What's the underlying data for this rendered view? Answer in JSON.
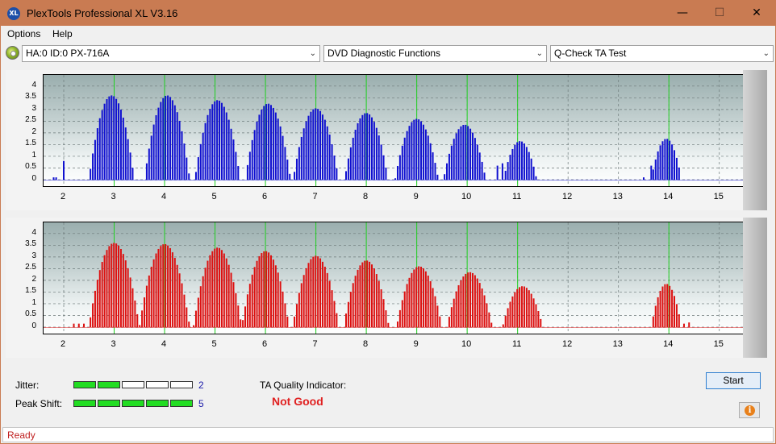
{
  "window": {
    "title": "PlexTools Professional XL V3.16",
    "icon_text": "XL",
    "icon": "app-logo-icon",
    "minimize_icon": "minimize-icon",
    "maximize_icon": "maximize-icon",
    "close_icon": "close-icon"
  },
  "menu": {
    "items": [
      "Options",
      "Help"
    ]
  },
  "toolbar": {
    "drive_icon": "disc-drive-icon",
    "drive": "HA:0 ID:0  PX-716A",
    "function": "DVD Diagnostic Functions",
    "test": "Q-Check TA Test"
  },
  "charts": {
    "yticks": [
      "4",
      "3.5",
      "3",
      "2.5",
      "2",
      "1.5",
      "1",
      "0.5",
      "0"
    ],
    "xticks": [
      "2",
      "3",
      "4",
      "5",
      "6",
      "7",
      "8",
      "9",
      "10",
      "11",
      "12",
      "13",
      "14",
      "15"
    ]
  },
  "chart_data": [
    {
      "type": "bar",
      "color": "#1010d0",
      "ylim": [
        0,
        4.2
      ],
      "xlim": [
        1.6,
        15.5
      ],
      "green_lines": [
        3,
        4,
        5,
        6,
        7,
        8,
        9,
        10,
        11,
        14
      ],
      "peaks": [
        {
          "center": 2.95,
          "peak": 3.6,
          "width": 0.45
        },
        {
          "center": 4.05,
          "peak": 3.6,
          "width": 0.45
        },
        {
          "center": 5.05,
          "peak": 3.4,
          "width": 0.45
        },
        {
          "center": 6.05,
          "peak": 3.25,
          "width": 0.45
        },
        {
          "center": 7.0,
          "peak": 3.05,
          "width": 0.45
        },
        {
          "center": 8.0,
          "peak": 2.85,
          "width": 0.43
        },
        {
          "center": 9.0,
          "peak": 2.6,
          "width": 0.43
        },
        {
          "center": 9.95,
          "peak": 2.35,
          "width": 0.42
        },
        {
          "center": 11.05,
          "peak": 1.65,
          "width": 0.33
        },
        {
          "center": 13.95,
          "peak": 1.75,
          "width": 0.3
        }
      ],
      "noise": [
        [
          1.8,
          0.1
        ],
        [
          1.85,
          0.1
        ],
        [
          2.0,
          0.8
        ],
        [
          13.5,
          0.1
        ],
        [
          13.65,
          0.6
        ],
        [
          10.7,
          0.7
        ],
        [
          10.6,
          0.6
        ]
      ]
    },
    {
      "type": "bar",
      "color": "#dd1010",
      "ylim": [
        0,
        4.2
      ],
      "xlim": [
        1.6,
        15.5
      ],
      "green_lines": [
        3,
        4,
        5,
        6,
        7,
        8,
        9,
        10,
        11,
        14
      ],
      "peaks": [
        {
          "center": 3.0,
          "peak": 3.6,
          "width": 0.5
        },
        {
          "center": 4.0,
          "peak": 3.55,
          "width": 0.5
        },
        {
          "center": 5.05,
          "peak": 3.4,
          "width": 0.48
        },
        {
          "center": 6.0,
          "peak": 3.25,
          "width": 0.47
        },
        {
          "center": 7.0,
          "peak": 3.05,
          "width": 0.46
        },
        {
          "center": 8.0,
          "peak": 2.85,
          "width": 0.45
        },
        {
          "center": 9.05,
          "peak": 2.6,
          "width": 0.45
        },
        {
          "center": 10.05,
          "peak": 2.35,
          "width": 0.45
        },
        {
          "center": 11.1,
          "peak": 1.75,
          "width": 0.4
        },
        {
          "center": 13.95,
          "peak": 1.85,
          "width": 0.3
        }
      ],
      "noise": [
        [
          2.2,
          0.15
        ],
        [
          2.3,
          0.15
        ],
        [
          2.4,
          0.15
        ],
        [
          14.3,
          0.15
        ],
        [
          14.4,
          0.2
        ]
      ]
    }
  ],
  "bottom": {
    "jitter_label": "Jitter:",
    "jitter_value": "2",
    "jitter_level": 2,
    "peak_label": "Peak Shift:",
    "peak_value": "5",
    "peak_level": 5,
    "meter_segments": 5,
    "ta_label": "TA Quality Indicator:",
    "ta_value": "Not Good",
    "start_label": "Start",
    "info_icon": "info-icon",
    "info_glyph": "i"
  },
  "status": {
    "text": "Ready"
  }
}
